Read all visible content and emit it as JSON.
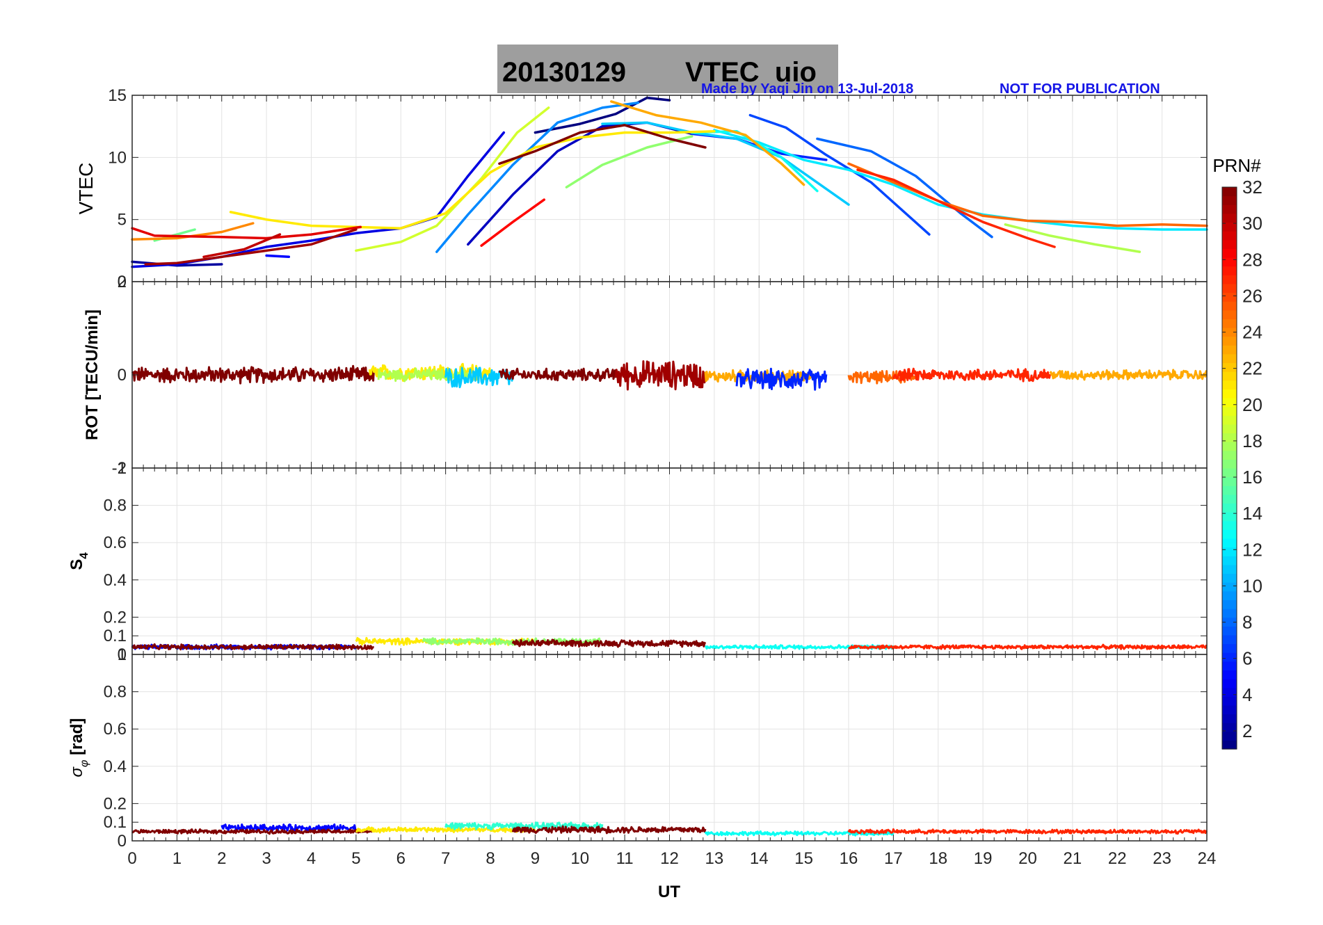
{
  "title": {
    "date": "20130129",
    "name": "VTEC  uio"
  },
  "watermark": {
    "made_by": "Made by Yaqi Jin on 13-Jul-2018",
    "notice": "NOT FOR PUBLICATION"
  },
  "colorbar": {
    "label": "PRN#",
    "range": [
      1,
      32
    ],
    "ticks": [
      2,
      4,
      6,
      8,
      10,
      12,
      14,
      16,
      18,
      20,
      22,
      24,
      26,
      28,
      30,
      32
    ],
    "colormap": "jet"
  },
  "colors": {
    "title_box": "#9e9e9e",
    "watermark": "#1515e6",
    "grid": "#e3e3e3"
  },
  "chart_data": [
    {
      "type": "line",
      "panel": "vtec",
      "ylabel": "VTEC",
      "xlim": [
        0,
        24
      ],
      "ylim": [
        0,
        15
      ],
      "yticks": [
        0,
        5,
        10,
        15
      ],
      "series": [
        {
          "prn": 2,
          "x": [
            0,
            1,
            2
          ],
          "y": [
            1.6,
            1.3,
            1.4
          ]
        },
        {
          "prn": 4,
          "x": [
            0,
            1,
            2,
            3,
            4,
            5,
            6,
            6.8,
            7.5,
            8.3
          ],
          "y": [
            1.2,
            1.4,
            2.0,
            2.8,
            3.3,
            3.9,
            4.3,
            5.2,
            8.5,
            12.0
          ]
        },
        {
          "prn": 5,
          "x": [
            3,
            3.5
          ],
          "y": [
            2.1,
            2.0
          ]
        },
        {
          "prn": 3,
          "x": [
            7.5,
            8.5,
            9.5,
            10.5,
            11.5,
            12.5
          ],
          "y": [
            3.0,
            7.0,
            10.5,
            12.5,
            12.8,
            11.9
          ]
        },
        {
          "prn": 1,
          "x": [
            9,
            10,
            10.8,
            11.5,
            12.0
          ],
          "y": [
            12.0,
            12.7,
            13.5,
            14.8,
            14.6
          ]
        },
        {
          "prn": 6,
          "x": [
            12.5,
            13.5,
            14.5,
            15.5
          ],
          "y": [
            11.9,
            11.5,
            10.3,
            9.8
          ]
        },
        {
          "prn": 7,
          "x": [
            13.8,
            14.6,
            15.5,
            16.5,
            17.8
          ],
          "y": [
            13.4,
            12.4,
            10.2,
            8.0,
            3.8
          ]
        },
        {
          "prn": 8,
          "x": [
            15.3,
            16.5,
            17.5,
            18.5,
            19.2
          ],
          "y": [
            11.5,
            10.5,
            8.5,
            5.5,
            3.6
          ]
        },
        {
          "prn": 9,
          "x": [
            6.8,
            7.5,
            8.5,
            9.5,
            10.5,
            11.3
          ],
          "y": [
            2.4,
            5.4,
            9.4,
            12.8,
            14.0,
            14.4
          ]
        },
        {
          "prn": 11,
          "x": [
            10.5,
            11.5,
            12.5,
            13.5,
            14.5,
            16.0
          ],
          "y": [
            12.7,
            12.8,
            12.0,
            11.5,
            10.0,
            6.2
          ]
        },
        {
          "prn": 12,
          "x": [
            13,
            14,
            15,
            16,
            17,
            18,
            19,
            20,
            21,
            22,
            23,
            24
          ],
          "y": [
            12.2,
            11.2,
            9.8,
            9.0,
            7.8,
            6.2,
            5.4,
            4.9,
            4.5,
            4.3,
            4.2,
            4.2
          ]
        },
        {
          "prn": 13,
          "x": [
            12.5,
            13.5,
            14.5,
            15.3
          ],
          "y": [
            12.0,
            12.1,
            10.0,
            7.3
          ]
        },
        {
          "prn": 16,
          "x": [
            0.5,
            1.0,
            1.4
          ],
          "y": [
            3.3,
            3.8,
            4.2
          ]
        },
        {
          "prn": 17,
          "x": [
            9.7,
            10.5,
            11.5,
            12.5
          ],
          "y": [
            7.6,
            9.4,
            10.8,
            11.7
          ]
        },
        {
          "prn": 18,
          "x": [
            19.5,
            20.5,
            21.5,
            22.5
          ],
          "y": [
            4.6,
            3.7,
            3.0,
            2.4
          ]
        },
        {
          "prn": 19,
          "x": [
            5,
            6,
            6.8,
            7.8,
            8.6,
            9.3
          ],
          "y": [
            2.5,
            3.2,
            4.5,
            8.3,
            12.0,
            14.0
          ]
        },
        {
          "prn": 21,
          "x": [
            2.2,
            3,
            4,
            5,
            6,
            7,
            8,
            9,
            10,
            11,
            12,
            13
          ],
          "y": [
            5.6,
            5.0,
            4.5,
            4.4,
            4.3,
            5.5,
            8.8,
            10.8,
            11.6,
            12.0,
            12.0,
            12.1
          ]
        },
        {
          "prn": 23,
          "x": [
            10.7,
            11.7,
            12.7,
            13.7,
            14.5,
            15.0
          ],
          "y": [
            14.5,
            13.4,
            12.8,
            11.8,
            9.5,
            7.8
          ]
        },
        {
          "prn": 24,
          "x": [
            0,
            1,
            2,
            2.7
          ],
          "y": [
            3.4,
            3.5,
            4.0,
            4.7
          ]
        },
        {
          "prn": 25,
          "x": [
            16,
            17,
            18,
            19,
            20,
            21,
            22,
            23,
            24
          ],
          "y": [
            9.5,
            8.0,
            6.5,
            5.3,
            4.9,
            4.8,
            4.5,
            4.6,
            4.5
          ]
        },
        {
          "prn": 27,
          "x": [
            16.2,
            17,
            18,
            19,
            20,
            20.6
          ],
          "y": [
            9.0,
            8.2,
            6.5,
            4.8,
            3.5,
            2.8
          ]
        },
        {
          "prn": 28,
          "x": [
            7.8,
            8.5,
            9.2
          ],
          "y": [
            2.9,
            4.8,
            6.6
          ]
        },
        {
          "prn": 29,
          "x": [
            0,
            0.5,
            2,
            3,
            4,
            5.1
          ],
          "y": [
            4.3,
            3.7,
            3.6,
            3.5,
            3.8,
            4.4
          ]
        },
        {
          "prn": 30,
          "x": [
            1.6,
            2.5,
            3.3
          ],
          "y": [
            2.0,
            2.6,
            3.8
          ]
        },
        {
          "prn": 31,
          "x": [
            0.3,
            1,
            2,
            3,
            4,
            5
          ],
          "y": [
            1.4,
            1.5,
            2.0,
            2.5,
            3.0,
            4.2
          ]
        },
        {
          "prn": 32,
          "x": [
            8.2,
            9,
            10,
            11,
            12,
            12.8
          ],
          "y": [
            9.5,
            10.5,
            12.0,
            12.6,
            11.5,
            10.8
          ]
        }
      ]
    },
    {
      "type": "line",
      "panel": "rot",
      "ylabel": "ROT [TECU/min]",
      "xlim": [
        0,
        24
      ],
      "ylim": [
        -2,
        2
      ],
      "yticks": [
        -2,
        0,
        2
      ],
      "noise_series": [
        {
          "prn": 32,
          "x": [
            0,
            5.4
          ],
          "center": 0.0,
          "amp": 0.2
        },
        {
          "prn": 21,
          "x": [
            5.3,
            8.0
          ],
          "center": 0.05,
          "amp": 0.2
        },
        {
          "prn": 18,
          "x": [
            5.5,
            7.5
          ],
          "center": 0.0,
          "amp": 0.15
        },
        {
          "prn": 11,
          "x": [
            7.0,
            8.5
          ],
          "center": -0.05,
          "amp": 0.25
        },
        {
          "prn": 32,
          "x": [
            8.2,
            10.8
          ],
          "center": 0.0,
          "amp": 0.15
        },
        {
          "prn": 31,
          "x": [
            10.8,
            12.8
          ],
          "center": 0.0,
          "amp": 0.35
        },
        {
          "prn": 23,
          "x": [
            12.8,
            15.2
          ],
          "center": -0.03,
          "amp": 0.15
        },
        {
          "prn": 6,
          "x": [
            13.5,
            15.5
          ],
          "center": -0.1,
          "amp": 0.25
        },
        {
          "prn": 25,
          "x": [
            16.0,
            17.5
          ],
          "center": -0.05,
          "amp": 0.15
        },
        {
          "prn": 27,
          "x": [
            17.0,
            20.5
          ],
          "center": 0.0,
          "amp": 0.15
        },
        {
          "prn": 23,
          "x": [
            20.5,
            24.0
          ],
          "center": 0.0,
          "amp": 0.12
        }
      ]
    },
    {
      "type": "line",
      "panel": "s4",
      "ylabel": "S4",
      "xlim": [
        0,
        24
      ],
      "ylim": [
        0,
        1
      ],
      "yticks": [
        0,
        0.1,
        0.2,
        0.4,
        0.6,
        0.8,
        1
      ],
      "noise_series": [
        {
          "prn": 5,
          "x": [
            0,
            5
          ],
          "center": 0.04,
          "amp": 0.015
        },
        {
          "prn": 32,
          "x": [
            0,
            5.4
          ],
          "center": 0.04,
          "amp": 0.015
        },
        {
          "prn": 21,
          "x": [
            5,
            9
          ],
          "center": 0.07,
          "amp": 0.02
        },
        {
          "prn": 17,
          "x": [
            6.5,
            10.5
          ],
          "center": 0.07,
          "amp": 0.02
        },
        {
          "prn": 32,
          "x": [
            8.5,
            12.8
          ],
          "center": 0.06,
          "amp": 0.02
        },
        {
          "prn": 13,
          "x": [
            12.8,
            17
          ],
          "center": 0.04,
          "amp": 0.012
        },
        {
          "prn": 27,
          "x": [
            16,
            24
          ],
          "center": 0.04,
          "amp": 0.012
        }
      ]
    },
    {
      "type": "line",
      "panel": "sigma_phi",
      "ylabel": "σφ [rad]",
      "xlabel": "UT",
      "xlim": [
        0,
        24
      ],
      "xticks": [
        0,
        1,
        2,
        3,
        4,
        5,
        6,
        7,
        8,
        9,
        10,
        11,
        12,
        13,
        14,
        15,
        16,
        17,
        18,
        19,
        20,
        21,
        22,
        23,
        24
      ],
      "ylim": [
        0,
        1
      ],
      "yticks": [
        0,
        0.1,
        0.2,
        0.4,
        0.6,
        0.8,
        1
      ],
      "noise_series": [
        {
          "prn": 5,
          "x": [
            2,
            5
          ],
          "center": 0.07,
          "amp": 0.02
        },
        {
          "prn": 32,
          "x": [
            0,
            5.4
          ],
          "center": 0.05,
          "amp": 0.012
        },
        {
          "prn": 21,
          "x": [
            5,
            9
          ],
          "center": 0.06,
          "amp": 0.015
        },
        {
          "prn": 14,
          "x": [
            7,
            10.5
          ],
          "center": 0.08,
          "amp": 0.02
        },
        {
          "prn": 32,
          "x": [
            8.5,
            12.8
          ],
          "center": 0.06,
          "amp": 0.02
        },
        {
          "prn": 13,
          "x": [
            12.8,
            17
          ],
          "center": 0.04,
          "amp": 0.012
        },
        {
          "prn": 27,
          "x": [
            16,
            24
          ],
          "center": 0.05,
          "amp": 0.012
        }
      ]
    }
  ]
}
